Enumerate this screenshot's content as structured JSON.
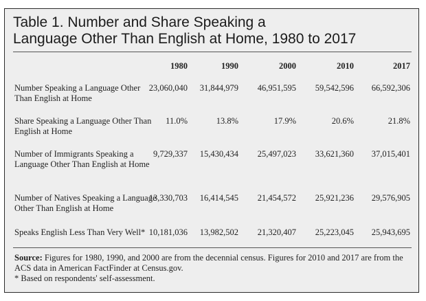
{
  "title_line1": "Table 1. Number and Share Speaking a",
  "title_line2": "Language Other Than English at Home, 1980 to 2017",
  "columns": [
    "1980",
    "1990",
    "2000",
    "2010",
    "2017"
  ],
  "rows": [
    {
      "label": "Number Speaking a Language Other Than English at Home",
      "values": [
        "23,060,040",
        "31,844,979",
        "46,951,595",
        "59,542,596",
        "66,592,306"
      ]
    },
    {
      "label": "Share Speaking a Language Other Than English at Home",
      "values": [
        "11.0%",
        "13.8%",
        "17.9%",
        "20.6%",
        "21.8%"
      ]
    },
    {
      "label": "Number of Immigrants Speaking a Language Other Than English at Home",
      "values": [
        "9,729,337",
        "15,430,434",
        "25,497,023",
        "33,621,360",
        "37,015,401"
      ]
    },
    {
      "label": "Number of Natives Speaking a Language Other Than English at Home",
      "values": [
        "13,330,703",
        "16,414,545",
        "21,454,572",
        "25,921,236",
        "29,576,905"
      ]
    },
    {
      "label": "Speaks English Less Than Very Well*",
      "values": [
        "10,181,036",
        "13,982,502",
        "21,320,407",
        "25,223,045",
        "25,943,695"
      ]
    }
  ],
  "source_label": "Source:",
  "source_text": "Figures for 1980, 1990, and 2000 are from the decennial census. Figures for 2010 and 2017 are from the ACS data in American FactFinder at Census.gov.",
  "footnote": "* Based on respondents' self-assessment."
}
